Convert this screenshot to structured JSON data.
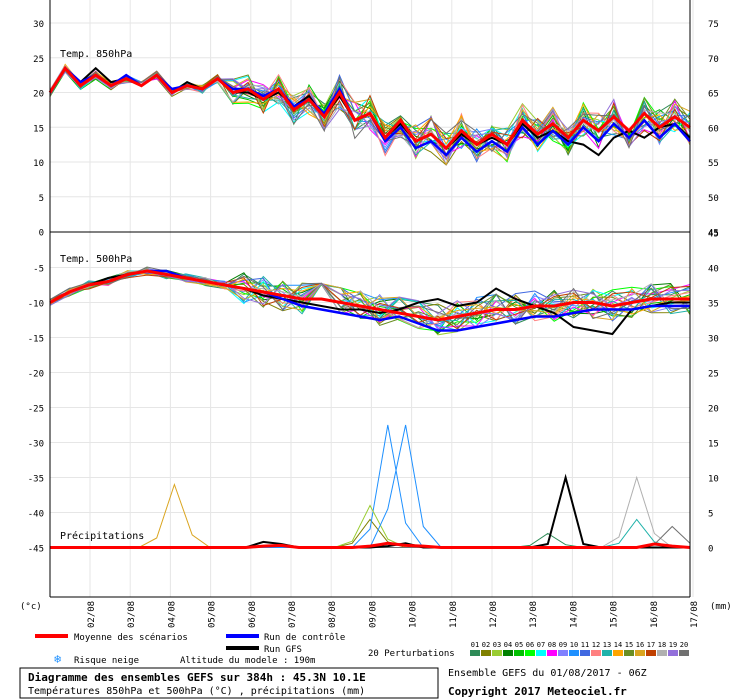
{
  "chart_data": {
    "type": "line",
    "units": {
      "left": "(°c)",
      "right": "(mm)"
    },
    "dates": [
      "02/08",
      "03/08",
      "04/08",
      "05/08",
      "06/08",
      "07/08",
      "08/08",
      "09/08",
      "10/08",
      "11/08",
      "12/08",
      "13/08",
      "14/08",
      "15/08",
      "16/08",
      "17/08"
    ],
    "panel_top": {
      "title": "Temp. 850hPa",
      "left_ticks": [
        "30",
        "25",
        "20",
        "15",
        "10",
        "5",
        "0"
      ],
      "right_ticks": [
        "75",
        "70",
        "65",
        "60",
        "55",
        "50",
        "45"
      ],
      "mean": [
        20,
        23.5,
        21,
        22.5,
        21,
        22,
        21,
        22.5,
        20,
        21,
        20.5,
        22,
        20,
        20.5,
        19,
        20.5,
        17.5,
        19,
        16.5,
        20,
        16,
        17,
        13.5,
        16,
        13,
        14,
        12,
        14.5,
        12.5,
        14,
        12.5,
        16,
        14,
        15.5,
        13.5,
        16,
        14.5,
        16.5,
        14.5,
        17,
        15,
        16.5,
        15
      ],
      "control": [
        20,
        23.5,
        21.5,
        22.5,
        21,
        22.5,
        21,
        22.5,
        20.5,
        21,
        20.5,
        22,
        20.5,
        20.5,
        19.5,
        20.5,
        18,
        19,
        17,
        20.5,
        16,
        17,
        13,
        15,
        12,
        13,
        11,
        13.5,
        11.5,
        13,
        11.5,
        15,
        12.5,
        14.5,
        12.5,
        15,
        13,
        15.5,
        13.5,
        16,
        13.5,
        15.5,
        13
      ],
      "gfs": [
        20,
        23.5,
        21.5,
        23.5,
        21.5,
        22,
        21,
        22.5,
        20,
        21.5,
        20.5,
        22,
        20,
        20,
        19,
        20,
        18,
        19.5,
        16.5,
        19.5,
        16,
        17,
        13.5,
        15.5,
        13,
        14,
        12,
        14,
        12.5,
        13.5,
        12.5,
        15.5,
        13.5,
        14.5,
        13,
        12.5,
        11,
        13.5,
        14.5,
        13.5,
        15,
        15.5,
        13.5
      ]
    },
    "panel_bottom": {
      "title": "Temp. 500hPa",
      "left_ticks": [
        "-5",
        "-10",
        "-15",
        "-20",
        "-25",
        "-30",
        "-35",
        "-40",
        "-45"
      ],
      "right_ticks": [
        "45",
        "40",
        "35",
        "30",
        "25",
        "20",
        "15",
        "10",
        "5",
        "0"
      ],
      "mean": [
        -10,
        -8.5,
        -7.5,
        -7,
        -6,
        -5.5,
        -6,
        -6.5,
        -7,
        -7.5,
        -8,
        -8.5,
        -9,
        -9.5,
        -9.5,
        -10,
        -10.5,
        -11,
        -11.5,
        -12,
        -12.5,
        -12,
        -11.5,
        -11,
        -11,
        -10.5,
        -10.5,
        -10,
        -10,
        -10.5,
        -10,
        -9.5,
        -9.5,
        -9.5
      ],
      "control": [
        -10,
        -8.5,
        -7.5,
        -7,
        -6,
        -5.5,
        -5.5,
        -6.5,
        -7,
        -7.5,
        -8,
        -8.5,
        -9.5,
        -10.5,
        -11,
        -11.5,
        -12,
        -12.5,
        -12,
        -13,
        -14,
        -14,
        -13.5,
        -13,
        -12.5,
        -12,
        -12,
        -11.5,
        -11,
        -11,
        -11,
        -10.5,
        -10.5,
        -10.5
      ],
      "gfs": [
        -10,
        -8.5,
        -7.5,
        -6.5,
        -6,
        -5.5,
        -6,
        -6.5,
        -7,
        -7.5,
        -8,
        -9,
        -9.5,
        -10,
        -10.5,
        -11,
        -11,
        -11.5,
        -11,
        -10,
        -9.5,
        -10.5,
        -10,
        -8,
        -9.5,
        -10.5,
        -11.5,
        -13.5,
        -14,
        -14.5,
        -11,
        -10.5,
        -10,
        -10
      ]
    },
    "precip": {
      "title": "Précipitations",
      "mean": [
        0,
        0,
        0,
        0,
        0,
        0,
        0,
        0,
        0,
        0,
        0,
        0,
        0.2,
        0.3,
        0,
        0,
        0,
        0,
        0.2,
        0.6,
        0.3,
        0.2,
        0,
        0,
        0,
        0,
        0,
        0,
        0,
        0,
        0,
        0,
        0,
        0,
        0.5,
        0.2,
        0
      ],
      "gfs": [
        0,
        0,
        0,
        0,
        0,
        0,
        0,
        0,
        0,
        0,
        0,
        0,
        0.8,
        0.5,
        0,
        0,
        0,
        0,
        0,
        0.2,
        0.6,
        0,
        0,
        0,
        0,
        0,
        0,
        0,
        0.5,
        10,
        0.5,
        0,
        0,
        0,
        0,
        0,
        0
      ],
      "spike_member": [
        0,
        0,
        0,
        0,
        0,
        0,
        0,
        0,
        0,
        0,
        0,
        0,
        0,
        0,
        0,
        0,
        0,
        0,
        0,
        5.5,
        17.5,
        3,
        0,
        0,
        0,
        0,
        0,
        0,
        0,
        0,
        0,
        0,
        0,
        0,
        0,
        0,
        0
      ]
    },
    "colors": {
      "mean": "#ff0000",
      "control": "#0000ff",
      "gfs": "#000000"
    }
  },
  "legend": {
    "mean": "Moyenne des scénarios",
    "control": "Run de contrôle",
    "gfs": "Run GFS",
    "snow": "Risque neige",
    "altitude": "Altitude du modele : 190m",
    "perturbations": "20 Perturbations",
    "member_numbers": [
      "01",
      "02",
      "03",
      "04",
      "05",
      "06",
      "07",
      "08",
      "09",
      "10",
      "11",
      "12",
      "13",
      "14",
      "15",
      "16",
      "17",
      "18",
      "19",
      "20"
    ],
    "member_colors": [
      "#2e8b57",
      "#808000",
      "#9acd32",
      "#008000",
      "#00c000",
      "#00ff00",
      "#00ffff",
      "#ff00ff",
      "#8080ff",
      "#1e90ff",
      "#4169e1",
      "#ff8080",
      "#20b2aa",
      "#ffa500",
      "#6b8e23",
      "#daa520",
      "#c04000",
      "#b0b0b0",
      "#9370db",
      "#707070"
    ]
  },
  "footer": {
    "title": "Diagramme des ensembles GEFS sur 384h : 45.3N 10.1E",
    "subtitle": "Températures 850hPa et 500hPa (°C) , précipitations (mm)",
    "run": "Ensemble GEFS du 01/08/2017 - 06Z",
    "copyright": "Copyright 2017 Meteociel.fr"
  }
}
